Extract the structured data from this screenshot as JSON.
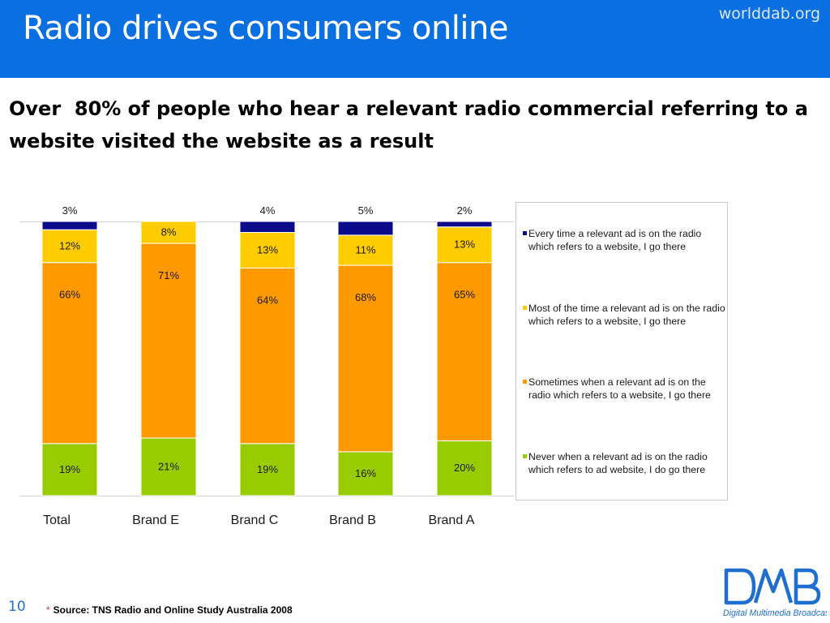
{
  "header": {
    "title": "Radio drives consumers online",
    "url": "worlddab.org"
  },
  "subtitle": "Over  80% of people who hear a relevant radio commercial referring to a website visited the website as a result",
  "footer": {
    "page_number": "10",
    "source_marker": "*",
    "source": "Source: TNS Radio and Online Study Australia 2008"
  },
  "logo": {
    "tagline": "Digital Multimedia Broadcasting",
    "lettering": "DMB"
  },
  "colors": {
    "header_bg": "#0a6fe0",
    "every_time": "#0a0a8a",
    "most_of_time": "#ffcc00",
    "sometimes": "#ff9900",
    "never": "#99cc00"
  },
  "chart_data": {
    "type": "bar",
    "stacked": true,
    "percent_stacked": true,
    "categories": [
      "Total",
      "Brand E",
      "Brand C",
      "Brand B",
      "Brand A"
    ],
    "series": [
      {
        "name": "Never when a relevant ad is on the radio which refers to ad website, I do go there",
        "color": "#99cc00",
        "values": [
          19,
          21,
          19,
          16,
          20
        ],
        "labels": [
          "19%",
          "21%",
          "19%",
          "16%",
          "20%"
        ]
      },
      {
        "name": "Sometimes when a relevant ad is on the radio which refers to a website, I go there",
        "color": "#ff9900",
        "values": [
          66,
          71,
          64,
          68,
          65
        ],
        "labels": [
          "66%",
          "71%",
          "64%",
          "68%",
          "65%"
        ]
      },
      {
        "name": "Most of the time a relevant ad is on the radio which refers to a website, I go there",
        "color": "#ffcc00",
        "values": [
          12,
          8,
          13,
          11,
          13
        ],
        "labels": [
          "12%",
          "8%",
          "13%",
          "11%",
          "13%"
        ]
      },
      {
        "name": "Every time a relevant ad is on the radio which refers to a website, I go there",
        "color": "#0a0a8a",
        "values": [
          3,
          0,
          4,
          5,
          2
        ],
        "labels": [
          "3%",
          "",
          "4%",
          "5%",
          "2%"
        ]
      }
    ],
    "legend_order": [
      3,
      2,
      1,
      0
    ],
    "legend_position": "right",
    "ylim": [
      0,
      100
    ],
    "grid": false
  }
}
